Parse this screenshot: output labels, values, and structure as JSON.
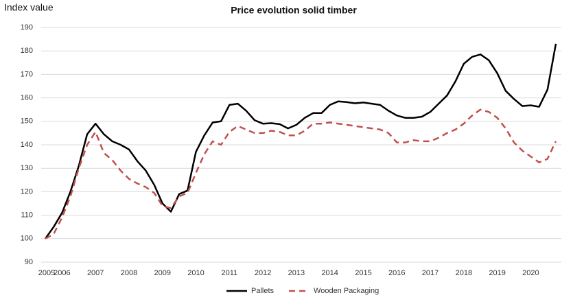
{
  "chart_data": {
    "type": "line",
    "title": "Price evolution solid timber",
    "y_label": "Index value",
    "categories": [
      "2005",
      null,
      "2006",
      null,
      null,
      null,
      "2007",
      null,
      null,
      null,
      "2008",
      null,
      null,
      null,
      "2009",
      null,
      null,
      null,
      "2010",
      null,
      null,
      null,
      "2011",
      null,
      null,
      null,
      "2012",
      null,
      null,
      null,
      "2013",
      null,
      null,
      null,
      "2014",
      null,
      null,
      null,
      "2015",
      null,
      null,
      null,
      "2016",
      null,
      null,
      null,
      "2017",
      null,
      null,
      null,
      "2018",
      null,
      null,
      null,
      "2019",
      null,
      null,
      null,
      "2020",
      null,
      null,
      null
    ],
    "series": [
      {
        "name": "Pallets",
        "color": "#000000",
        "line_style": "solid",
        "values": [
          100,
          105,
          111,
          120,
          131,
          144.5,
          149,
          144.5,
          141.5,
          140,
          138,
          133,
          129,
          123,
          115,
          111.5,
          119,
          120.5,
          137,
          144,
          149.5,
          150,
          157,
          157.5,
          154.5,
          150.5,
          149,
          149.2,
          148.8,
          147,
          148.5,
          151.5,
          153.5,
          153.5,
          157,
          158.5,
          158.2,
          157.7,
          158,
          157.5,
          157,
          154.5,
          152.5,
          151.5,
          151.5,
          152,
          154,
          157.5,
          161,
          167,
          174.5,
          177.5,
          178.5,
          176,
          170.5,
          163,
          159.5,
          156.5,
          156.8,
          156.2,
          163.5,
          183
        ]
      },
      {
        "name": "Wooden Packaging",
        "color": "#c0504d",
        "line_style": "dashed",
        "values": [
          100,
          102,
          109,
          118,
          130,
          140,
          145.5,
          136.5,
          133.5,
          129,
          125.5,
          123.5,
          122,
          119.5,
          114,
          113,
          118,
          119.5,
          128,
          136,
          141.5,
          140,
          145.5,
          148,
          146.5,
          145,
          145,
          146,
          145.5,
          144,
          144,
          146,
          149,
          149,
          149.5,
          149,
          148.5,
          148,
          147.5,
          147,
          146.5,
          145,
          141,
          141,
          142,
          141.5,
          141.5,
          143,
          145,
          146.5,
          149,
          152.5,
          155,
          154,
          151.5,
          147,
          141,
          137.5,
          135,
          132.5,
          134,
          141.5
        ]
      }
    ],
    "ylim": [
      90,
      190
    ],
    "yticks": [
      90,
      100,
      110,
      120,
      130,
      140,
      150,
      160,
      170,
      180,
      190
    ],
    "grid": true,
    "legend": "bottom"
  }
}
